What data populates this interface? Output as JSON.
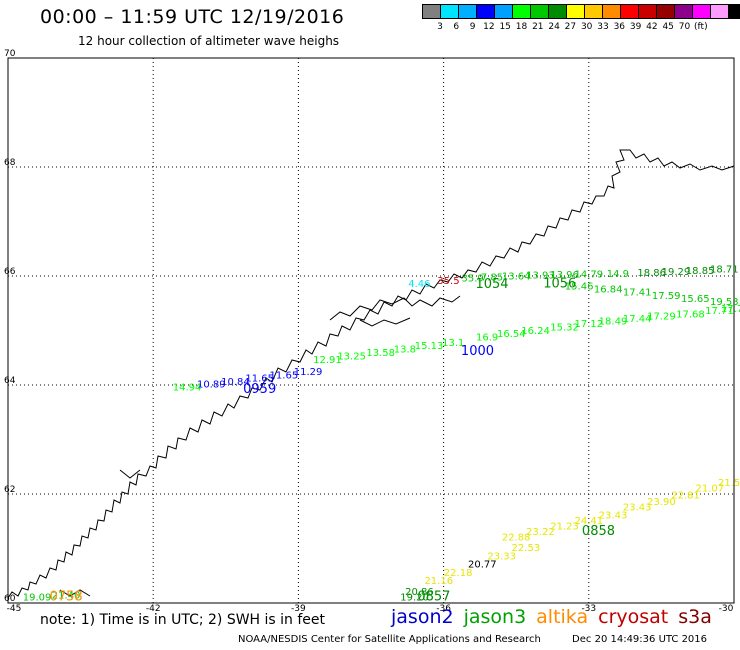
{
  "header": {
    "title": "00:00 – 11:59 UTC 12/19/2016",
    "subtitle": "12 hour collection of altimeter wave heighs"
  },
  "legend": {
    "colors": [
      "#808080",
      "#00e5ff",
      "#00b0ff",
      "#0000ff",
      "#00a0ff",
      "#00ff00",
      "#00c800",
      "#008c00",
      "#ffff00",
      "#ffc800",
      "#ff8c00",
      "#ff0000",
      "#c80000",
      "#960000",
      "#8c008c",
      "#ff00ff",
      "#ff9bff",
      "#000000"
    ],
    "labels": [
      "3",
      "6",
      "9",
      "12",
      "15",
      "18",
      "21",
      "24",
      "27",
      "30",
      "33",
      "36",
      "39",
      "42",
      "45",
      "70",
      "(ft)"
    ]
  },
  "axes": {
    "lat_labels": [
      "70",
      "68",
      "66",
      "64",
      "62",
      "60"
    ],
    "lon_labels": [
      "-45",
      "-42",
      "-39",
      "-36",
      "-33",
      "-30"
    ]
  },
  "map": {
    "extent": {
      "lon": [
        -45,
        -30
      ],
      "lat": [
        60,
        70
      ]
    },
    "tracks": [
      {
        "id": "track-a",
        "pass_time": "1054",
        "time_color": "#008c00",
        "values": [
          {
            "lon": -36.5,
            "lat": 65.8,
            "v": "4.46",
            "c": "#00e5ff"
          },
          {
            "lon": -35.9,
            "lat": 65.85,
            "v": "35.5",
            "c": "#c80000"
          },
          {
            "lon": -35.4,
            "lat": 65.9,
            "v": "35.9",
            "c": "#00c800"
          },
          {
            "lon": -35.0,
            "lat": 65.92,
            "v": "7.85",
            "c": "#00c800"
          },
          {
            "lon": -34.5,
            "lat": 65.94,
            "v": "13.64",
            "c": "#00c800"
          },
          {
            "lon": -34.0,
            "lat": 65.95,
            "v": "13.93",
            "c": "#00c800"
          },
          {
            "lon": -33.5,
            "lat": 65.96,
            "v": "13.96",
            "c": "#00c800"
          },
          {
            "lon": -33.0,
            "lat": 65.97,
            "v": "14.79",
            "c": "#00c800"
          },
          {
            "lon": -32.4,
            "lat": 65.98,
            "v": "14.9",
            "c": "#00c800"
          },
          {
            "lon": -31.7,
            "lat": 66.0,
            "v": "18.86",
            "c": "#008c00"
          },
          {
            "lon": -31.2,
            "lat": 66.02,
            "v": "19.29",
            "c": "#008c00"
          },
          {
            "lon": -30.7,
            "lat": 66.04,
            "v": "18.85",
            "c": "#008c00"
          },
          {
            "lon": -30.2,
            "lat": 66.06,
            "v": "18.71",
            "c": "#008c00"
          }
        ]
      },
      {
        "id": "track-b",
        "pass_time": "1056",
        "time_color": "#008c00",
        "values": [
          {
            "lon": -33.2,
            "lat": 65.75,
            "v": "15.46",
            "c": "#00c800"
          },
          {
            "lon": -32.6,
            "lat": 65.7,
            "v": "16.84",
            "c": "#00c800"
          },
          {
            "lon": -32.0,
            "lat": 65.64,
            "v": "17.41",
            "c": "#00c800"
          },
          {
            "lon": -31.4,
            "lat": 65.58,
            "v": "17.59",
            "c": "#00c800"
          },
          {
            "lon": -30.8,
            "lat": 65.52,
            "v": "15.65",
            "c": "#00c800"
          },
          {
            "lon": -30.2,
            "lat": 65.47,
            "v": "19.53",
            "c": "#00c800"
          }
        ]
      },
      {
        "id": "track-c",
        "pass_time": "1000",
        "time_color": "#0000ff",
        "values": [
          {
            "lon": -38.4,
            "lat": 64.4,
            "v": "12.91",
            "c": "#00ff00"
          },
          {
            "lon": -37.9,
            "lat": 64.47,
            "v": "13.25",
            "c": "#00ff00"
          },
          {
            "lon": -37.3,
            "lat": 64.53,
            "v": "13.58",
            "c": "#00ff00"
          },
          {
            "lon": -36.8,
            "lat": 64.6,
            "v": "13.8",
            "c": "#00ff00"
          },
          {
            "lon": -36.3,
            "lat": 64.66,
            "v": "15.13",
            "c": "#00ff00"
          },
          {
            "lon": -35.8,
            "lat": 64.72,
            "v": "13.1",
            "c": "#00ff00"
          },
          {
            "lon": -35.1,
            "lat": 64.82,
            "v": "16.9",
            "c": "#00ff00"
          },
          {
            "lon": -34.6,
            "lat": 64.88,
            "v": "16.54",
            "c": "#00ff00"
          },
          {
            "lon": -34.1,
            "lat": 64.94,
            "v": "16.24",
            "c": "#00ff00"
          },
          {
            "lon": -33.5,
            "lat": 65.0,
            "v": "15.32",
            "c": "#00ff00"
          },
          {
            "lon": -33.0,
            "lat": 65.06,
            "v": "17.12",
            "c": "#00ff00"
          },
          {
            "lon": -32.5,
            "lat": 65.11,
            "v": "18.49",
            "c": "#00ff00"
          },
          {
            "lon": -32.0,
            "lat": 65.16,
            "v": "17.44",
            "c": "#00ff00"
          },
          {
            "lon": -31.5,
            "lat": 65.2,
            "v": "17.29",
            "c": "#00ff00"
          },
          {
            "lon": -30.9,
            "lat": 65.24,
            "v": "17.68",
            "c": "#00ff00"
          },
          {
            "lon": -30.3,
            "lat": 65.3,
            "v": "17.71",
            "c": "#00ff00"
          },
          {
            "lon": -29.9,
            "lat": 65.34,
            "v": "17.7",
            "c": "#00ff00"
          }
        ]
      },
      {
        "id": "track-d",
        "pass_time": "0959",
        "time_color": "#0000ff",
        "values": [
          {
            "lon": -41.3,
            "lat": 63.9,
            "v": "14.94",
            "c": "#00ff00"
          },
          {
            "lon": -40.8,
            "lat": 63.95,
            "v": "10.89",
            "c": "#0000ff"
          },
          {
            "lon": -40.3,
            "lat": 64.0,
            "v": "10.84",
            "c": "#0000ff"
          },
          {
            "lon": -39.8,
            "lat": 64.06,
            "v": "11.65",
            "c": "#0000ff"
          },
          {
            "lon": -39.3,
            "lat": 64.12,
            "v": "11.65",
            "c": "#0000ff"
          },
          {
            "lon": -38.8,
            "lat": 64.18,
            "v": "11.29",
            "c": "#0000ff"
          }
        ]
      },
      {
        "id": "track-e",
        "pass_time": "0858",
        "time_color": "#008c00",
        "values": [
          {
            "lon": -34.5,
            "lat": 61.15,
            "v": "22.88",
            "c": "#e6e600"
          },
          {
            "lon": -34.0,
            "lat": 61.25,
            "v": "23.22",
            "c": "#e6e600"
          },
          {
            "lon": -33.5,
            "lat": 61.35,
            "v": "21.23",
            "c": "#e6e600"
          },
          {
            "lon": -33.0,
            "lat": 61.45,
            "v": "24.41",
            "c": "#e6e600"
          },
          {
            "lon": -32.5,
            "lat": 61.55,
            "v": "23.43",
            "c": "#e6e600"
          },
          {
            "lon": -32.0,
            "lat": 61.7,
            "v": "23.43",
            "c": "#e6e600"
          },
          {
            "lon": -31.5,
            "lat": 61.8,
            "v": "23.90",
            "c": "#e6e600"
          },
          {
            "lon": -31.0,
            "lat": 61.92,
            "v": "22.81",
            "c": "#e6e600"
          },
          {
            "lon": -30.5,
            "lat": 62.05,
            "v": "21.07",
            "c": "#e6e600"
          },
          {
            "lon": -30.1,
            "lat": 62.15,
            "v": "21.5",
            "c": "#e6e600"
          }
        ]
      },
      {
        "id": "track-f",
        "pass_time": "0857",
        "time_color": "#008c00",
        "values": [
          {
            "lon": -36.6,
            "lat": 60.05,
            "v": "19.20",
            "c": "#008c00"
          },
          {
            "lon": -36.5,
            "lat": 60.15,
            "v": "20.86",
            "c": "#008c00"
          },
          {
            "lon": -36.1,
            "lat": 60.35,
            "v": "21.16",
            "c": "#e6e600"
          },
          {
            "lon": -35.7,
            "lat": 60.5,
            "v": "22.18",
            "c": "#e6e600"
          },
          {
            "lon": -35.2,
            "lat": 60.65,
            "v": "20.77",
            "c": "#000000"
          },
          {
            "lon": -34.8,
            "lat": 60.8,
            "v": "23.33",
            "c": "#e6e600"
          },
          {
            "lon": -34.3,
            "lat": 60.95,
            "v": "22.53",
            "c": "#e6e600"
          }
        ]
      },
      {
        "id": "track-g",
        "pass_time": "0758",
        "time_color": "#ff8c00",
        "values": [
          {
            "lon": -44.4,
            "lat": 60.05,
            "v": "19.09",
            "c": "#00c800"
          },
          {
            "lon": -43.8,
            "lat": 60.08,
            "v": "21.40",
            "c": "#00c800"
          }
        ]
      }
    ]
  },
  "footer": {
    "note": "note:  1) Time is in UTC;  2) SWH is in feet",
    "satellites": [
      {
        "name": "jason2",
        "color": "#0000cc"
      },
      {
        "name": "jason3",
        "color": "#00a000"
      },
      {
        "name": "altika",
        "color": "#ff8c00"
      },
      {
        "name": "cryosat",
        "color": "#c00000"
      },
      {
        "name": "s3a",
        "color": "#800000"
      }
    ],
    "credit": "NOAA/NESDIS Center for Satellite Applications and Research",
    "timestamp": "Dec 20 14:49:36 UTC 2016"
  }
}
